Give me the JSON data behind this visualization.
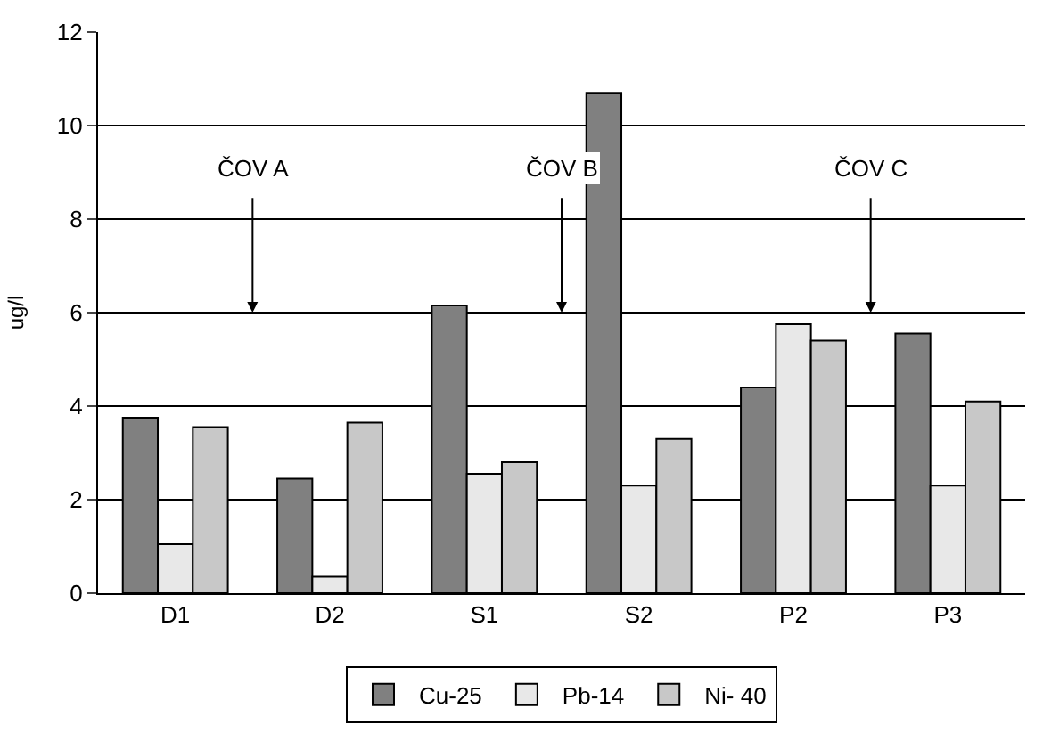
{
  "chart_data": {
    "type": "bar",
    "ylabel": "ug/l",
    "categories": [
      "D1",
      "D2",
      "S1",
      "S2",
      "P2",
      "P3"
    ],
    "series": [
      {
        "name": "Cu-25",
        "color": "#808080",
        "values": [
          3.75,
          2.45,
          6.15,
          10.7,
          4.4,
          5.55
        ]
      },
      {
        "name": "Pb-14",
        "color": "#e8e8e8",
        "values": [
          1.05,
          0.35,
          2.55,
          2.3,
          5.75,
          2.3
        ]
      },
      {
        "name": "Ni- 40",
        "color": "#c8c8c8",
        "values": [
          3.55,
          3.65,
          2.8,
          3.3,
          5.4,
          4.1
        ]
      }
    ],
    "ylim": [
      0,
      12
    ],
    "yticks": [
      0,
      2,
      4,
      6,
      8,
      10,
      12
    ],
    "grid": "y",
    "legend": "bottom",
    "annotations": [
      "ČOV A",
      "ČOV B",
      "ČOV C"
    ]
  }
}
